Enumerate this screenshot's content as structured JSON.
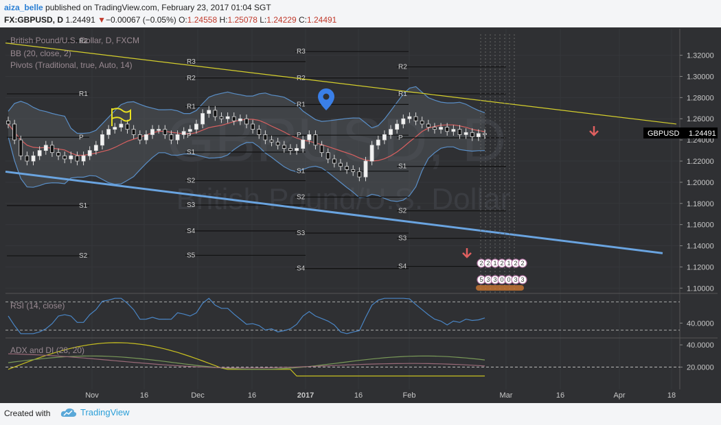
{
  "header": {
    "user": "aiza_belle",
    "published": "published on TradingView.com, February 23, 2017 01:04 SGT",
    "symbol": "FX:GBPUSD, D",
    "last": "1.24491",
    "change": "−0.00067 (−0.05%)",
    "o_label": "O:",
    "o": "1.24558",
    "h_label": "H:",
    "h": "1.25078",
    "l_label": "L:",
    "l": "1.24229",
    "c_label": "C:",
    "c": "1.24491"
  },
  "legend": {
    "name": "British Pound/U.S. Dollar, D, FXCM",
    "bb": "BB (20, close, 2)",
    "pivots": "Pivots (Traditional, true, Auto, 14)"
  },
  "watermark": {
    "symbol": "GBPUSD, D",
    "name": "British Pound/U.S. Dollar"
  },
  "price_label": {
    "symbol": "GBPUSD",
    "value": "1.24491"
  },
  "footer": {
    "created": "Created with",
    "brand": "TradingView"
  },
  "colors": {
    "bg": "#2f3033",
    "bb_band": "#5a8fc8",
    "bb_basis": "#d96060",
    "trend_upper": "#d6d02c",
    "trend_lower": "#6aa4e0",
    "rsi": "#4a86c6",
    "adx": "#c8c020",
    "di_plus": "#7a9a58",
    "di_minus": "#9a6a78"
  },
  "chart_data": [
    {
      "type": "candlestick",
      "title": "British Pound/U.S. Dollar, D, FXCM",
      "x_ticks": [
        "Nov",
        "16",
        "Dec",
        "16",
        "2017",
        "16",
        "Feb",
        "Mar",
        "16",
        "Apr",
        "18"
      ],
      "y_ticks": [
        "1.32000",
        "1.30000",
        "1.28000",
        "1.26000",
        "1.24000",
        "1.22000",
        "1.20000",
        "1.18000",
        "1.16000",
        "1.14000",
        "1.12000",
        "1.10000"
      ],
      "ylim": [
        1.095,
        1.345
      ],
      "close_path": [
        1.255,
        1.24,
        1.225,
        1.22,
        1.225,
        1.23,
        1.235,
        1.228,
        1.225,
        1.222,
        1.225,
        1.22,
        1.225,
        1.23,
        1.235,
        1.245,
        1.25,
        1.252,
        1.255,
        1.25,
        1.245,
        1.24,
        1.245,
        1.25,
        1.25,
        1.245,
        1.24,
        1.245,
        1.248,
        1.25,
        1.255,
        1.265,
        1.268,
        1.262,
        1.26,
        1.262,
        1.258,
        1.26,
        1.255,
        1.25,
        1.245,
        1.24,
        1.238,
        1.235,
        1.232,
        1.23,
        1.232,
        1.24,
        1.245,
        1.235,
        1.228,
        1.222,
        1.218,
        1.215,
        1.212,
        1.21,
        1.205,
        1.22,
        1.235,
        1.24,
        1.245,
        1.25,
        1.255,
        1.26,
        1.262,
        1.258,
        1.255,
        1.252,
        1.25,
        1.252,
        1.248,
        1.25,
        1.245,
        1.247,
        1.243,
        1.246,
        1.245
      ],
      "pivot_levels": [
        {
          "label": "R2",
          "value": 1.3335
        },
        {
          "label": "R1",
          "value": 1.2835
        },
        {
          "label": "P",
          "value": 1.2425
        },
        {
          "label": "S1",
          "value": 1.178
        },
        {
          "label": "S2",
          "value": 1.1305
        },
        {
          "label": "R3",
          "value": 1.314
        },
        {
          "label": "R2",
          "value": 1.2985
        },
        {
          "label": "R1",
          "value": 1.2715
        },
        {
          "label": "P",
          "value": 1.244
        },
        {
          "label": "S1",
          "value": 1.2285
        },
        {
          "label": "S2",
          "value": 1.2015
        },
        {
          "label": "S3",
          "value": 1.1785
        },
        {
          "label": "S4",
          "value": 1.154
        },
        {
          "label": "S5",
          "value": 1.131
        },
        {
          "label": "R3",
          "value": 1.3235
        },
        {
          "label": "R2",
          "value": 1.2985
        },
        {
          "label": "R1",
          "value": 1.2735
        },
        {
          "label": "P",
          "value": 1.2445
        },
        {
          "label": "S1",
          "value": 1.2105
        },
        {
          "label": "S2",
          "value": 1.186
        },
        {
          "label": "S3",
          "value": 1.152
        },
        {
          "label": "S4",
          "value": 1.1185
        },
        {
          "label": "R2",
          "value": 1.309
        },
        {
          "label": "R1",
          "value": 1.2835
        },
        {
          "label": "P",
          "value": 1.242
        },
        {
          "label": "S1",
          "value": 1.215
        },
        {
          "label": "S2",
          "value": 1.173
        },
        {
          "label": "S3",
          "value": 1.147
        },
        {
          "label": "S4",
          "value": 1.1205
        }
      ]
    },
    {
      "type": "line",
      "title": "RSI (14, close)",
      "y_ticks": [
        "40.0000"
      ]
    },
    {
      "type": "line",
      "title": "ADX and DI (28, 20)",
      "y_ticks": [
        "40.0000",
        "20.0000"
      ]
    }
  ],
  "event_badges": [
    "2",
    "2",
    "1",
    "2",
    "1",
    "2",
    "2",
    "5",
    "3",
    "3",
    "0",
    "0",
    "3",
    "3"
  ]
}
